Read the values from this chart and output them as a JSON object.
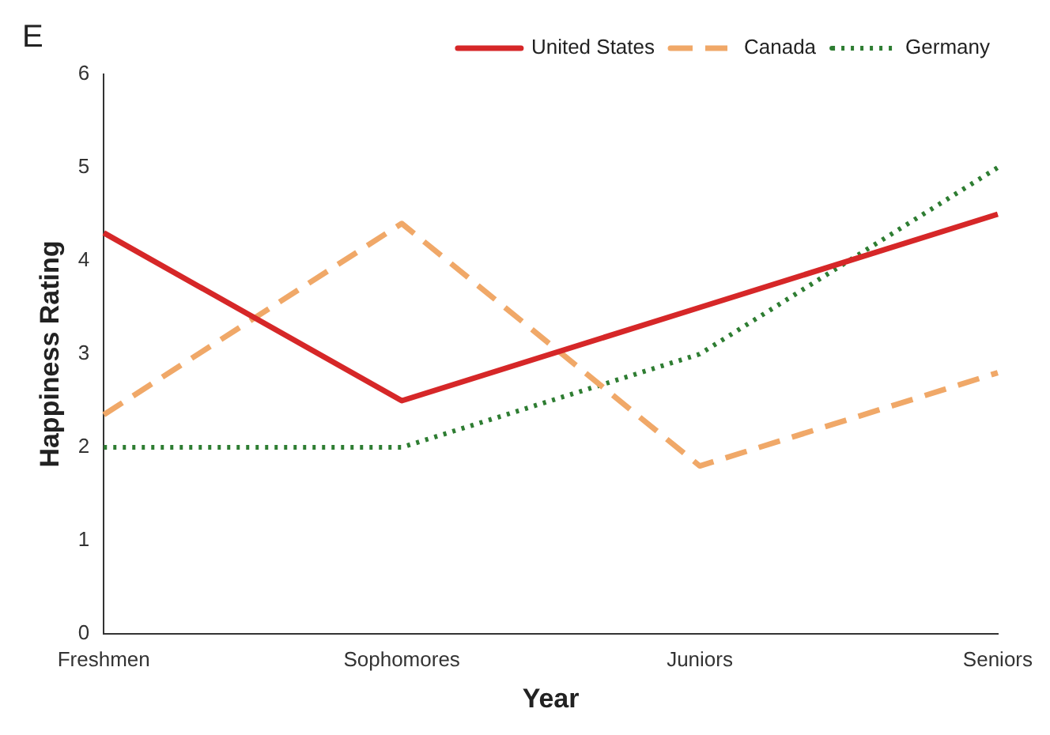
{
  "chart_data": {
    "type": "line",
    "xlabel": "Year",
    "ylabel": "Happiness Rating",
    "annotations": [
      "E"
    ],
    "categories": [
      "Freshmen",
      "Sophomores",
      "Juniors",
      "Seniors"
    ],
    "series": [
      {
        "name": "United States",
        "color": "#d62728",
        "values": [
          4.3,
          2.5,
          3.5,
          4.5
        ],
        "line_style": "solid"
      },
      {
        "name": "Canada",
        "color": "#f0a868",
        "values": [
          2.35,
          4.4,
          1.8,
          2.8
        ],
        "line_style": "dashed"
      },
      {
        "name": "Germany",
        "color": "#2e7d32",
        "values": [
          2,
          2,
          3,
          5
        ],
        "line_style": "dotted"
      }
    ],
    "ylim": [
      0,
      6
    ],
    "yticks": [
      0,
      1,
      2,
      3,
      4,
      5,
      6
    ],
    "grid": false,
    "legend": "top right",
    "marker": "none"
  }
}
